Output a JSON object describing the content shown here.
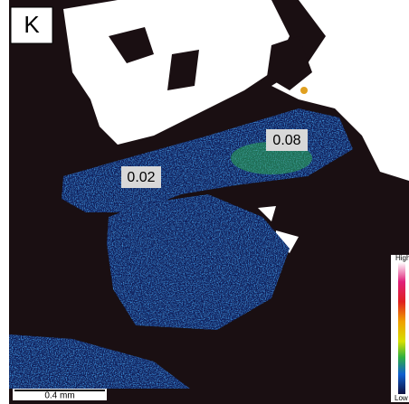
{
  "panel_label": "K",
  "annotations": [
    "0.08",
    "0.02"
  ],
  "scale_bar": {
    "label": "0.4 mm"
  },
  "legend": {
    "high": "High",
    "low": "Low"
  }
}
